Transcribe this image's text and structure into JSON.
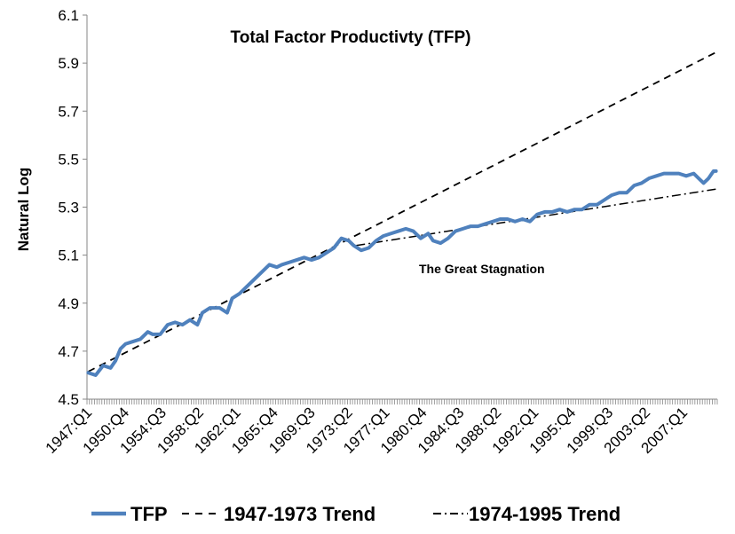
{
  "chart_data": {
    "type": "line",
    "title": "Total Factor Productivty (TFP)",
    "xlabel": "",
    "ylabel": "Natural Log",
    "ylim": [
      4.5,
      6.1
    ],
    "yticks": [
      "4.5",
      "4.7",
      "4.9",
      "5.1",
      "5.3",
      "5.5",
      "5.7",
      "5.9",
      "6.1"
    ],
    "x_start": "1947:Q1",
    "x_end": "2010:Q2",
    "xtick_labels": [
      "1947:Q1",
      "1950:Q4",
      "1954:Q3",
      "1958:Q2",
      "1962:Q1",
      "1965:Q4",
      "1969:Q3",
      "1973:Q2",
      "1977:Q1",
      "1980:Q4",
      "1984:Q3",
      "1988:Q2",
      "1992:Q1",
      "1995:Q4",
      "1999:Q3",
      "2003:Q2",
      "2007:Q1"
    ],
    "grid": false,
    "legend_position": "bottom",
    "annotation": "The Great Stagnation",
    "series": [
      {
        "name": "TFP",
        "style": "solid",
        "color": "#4f81bd",
        "points": [
          [
            "1947:Q1",
            4.61
          ],
          [
            "1947:Q4",
            4.6
          ],
          [
            "1948:Q3",
            4.64
          ],
          [
            "1949:Q2",
            4.63
          ],
          [
            "1949:Q4",
            4.66
          ],
          [
            "1950:Q2",
            4.71
          ],
          [
            "1950:Q4",
            4.73
          ],
          [
            "1951:Q3",
            4.74
          ],
          [
            "1952:Q2",
            4.75
          ],
          [
            "1953:Q1",
            4.78
          ],
          [
            "1953:Q3",
            4.77
          ],
          [
            "1954:Q2",
            4.77
          ],
          [
            "1955:Q1",
            4.81
          ],
          [
            "1955:Q4",
            4.82
          ],
          [
            "1956:Q3",
            4.81
          ],
          [
            "1957:Q2",
            4.83
          ],
          [
            "1958:Q1",
            4.81
          ],
          [
            "1958:Q3",
            4.86
          ],
          [
            "1959:Q2",
            4.88
          ],
          [
            "1960:Q2",
            4.88
          ],
          [
            "1961:Q1",
            4.86
          ],
          [
            "1961:Q3",
            4.92
          ],
          [
            "1962:Q2",
            4.94
          ],
          [
            "1963:Q1",
            4.97
          ],
          [
            "1963:Q4",
            5.0
          ],
          [
            "1964:Q3",
            5.03
          ],
          [
            "1965:Q2",
            5.06
          ],
          [
            "1966:Q1",
            5.05
          ],
          [
            "1966:Q3",
            5.06
          ],
          [
            "1967:Q2",
            5.07
          ],
          [
            "1968:Q1",
            5.08
          ],
          [
            "1968:Q4",
            5.09
          ],
          [
            "1969:Q3",
            5.08
          ],
          [
            "1970:Q2",
            5.09
          ],
          [
            "1971:Q1",
            5.11
          ],
          [
            "1971:Q4",
            5.13
          ],
          [
            "1972:Q3",
            5.17
          ],
          [
            "1973:Q2",
            5.16
          ],
          [
            "1973:Q4",
            5.14
          ],
          [
            "1974:Q3",
            5.12
          ],
          [
            "1975:Q2",
            5.13
          ],
          [
            "1976:Q1",
            5.16
          ],
          [
            "1976:Q4",
            5.18
          ],
          [
            "1977:Q3",
            5.19
          ],
          [
            "1978:Q2",
            5.2
          ],
          [
            "1979:Q1",
            5.21
          ],
          [
            "1979:Q4",
            5.2
          ],
          [
            "1980:Q3",
            5.17
          ],
          [
            "1981:Q2",
            5.19
          ],
          [
            "1981:Q4",
            5.16
          ],
          [
            "1982:Q3",
            5.15
          ],
          [
            "1983:Q2",
            5.17
          ],
          [
            "1984:Q1",
            5.2
          ],
          [
            "1984:Q4",
            5.21
          ],
          [
            "1985:Q3",
            5.22
          ],
          [
            "1986:Q2",
            5.22
          ],
          [
            "1987:Q1",
            5.23
          ],
          [
            "1987:Q4",
            5.24
          ],
          [
            "1988:Q3",
            5.25
          ],
          [
            "1989:Q2",
            5.25
          ],
          [
            "1990:Q1",
            5.24
          ],
          [
            "1990:Q4",
            5.25
          ],
          [
            "1991:Q3",
            5.24
          ],
          [
            "1992:Q2",
            5.27
          ],
          [
            "1993:Q1",
            5.28
          ],
          [
            "1993:Q4",
            5.28
          ],
          [
            "1994:Q3",
            5.29
          ],
          [
            "1995:Q2",
            5.28
          ],
          [
            "1996:Q1",
            5.29
          ],
          [
            "1996:Q4",
            5.29
          ],
          [
            "1997:Q3",
            5.31
          ],
          [
            "1998:Q2",
            5.31
          ],
          [
            "1999:Q1",
            5.33
          ],
          [
            "1999:Q4",
            5.35
          ],
          [
            "2000:Q3",
            5.36
          ],
          [
            "2001:Q2",
            5.36
          ],
          [
            "2002:Q1",
            5.39
          ],
          [
            "2002:Q4",
            5.4
          ],
          [
            "2003:Q3",
            5.42
          ],
          [
            "2004:Q2",
            5.43
          ],
          [
            "2005:Q1",
            5.44
          ],
          [
            "2005:Q4",
            5.44
          ],
          [
            "2006:Q3",
            5.44
          ],
          [
            "2007:Q2",
            5.43
          ],
          [
            "2008:Q1",
            5.44
          ],
          [
            "2008:Q3",
            5.42
          ],
          [
            "2009:Q1",
            5.4
          ],
          [
            "2009:Q3",
            5.42
          ],
          [
            "2010:Q1",
            5.45
          ],
          [
            "2010:Q2",
            5.45
          ]
        ]
      },
      {
        "name": "1947-1973 Trend",
        "style": "dashed",
        "color": "#000000",
        "points": [
          [
            "1947:Q1",
            4.615
          ],
          [
            "2010:Q2",
            5.945
          ]
        ]
      },
      {
        "name": "1974-1995 Trend",
        "style": "dash-dot",
        "color": "#000000",
        "points": [
          [
            "1974:Q1",
            5.14
          ],
          [
            "2010:Q2",
            5.375
          ]
        ]
      }
    ]
  }
}
